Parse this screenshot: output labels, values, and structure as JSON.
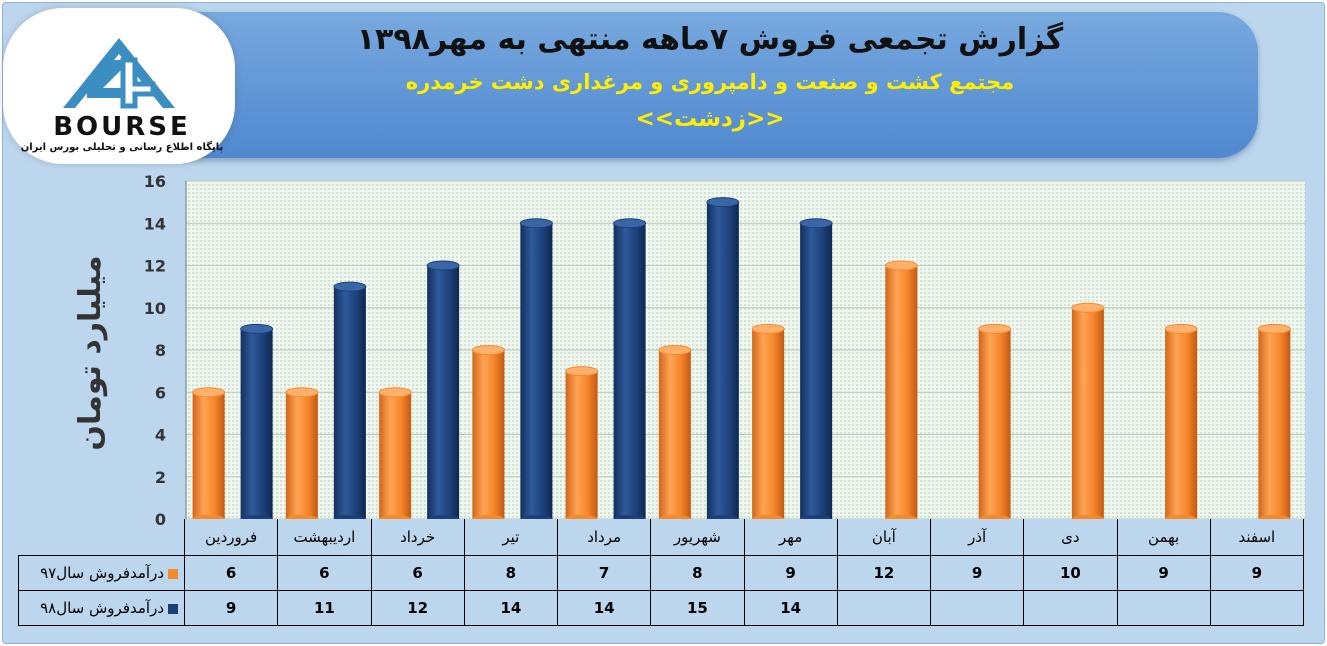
{
  "header": {
    "title": "گزارش تجمعی فروش ۷ماهه منتهی به مهر۱۳۹۸",
    "subtitle": "مجتمع کشت و صنعت و دامپروری و مرغداری دشت خرمدره",
    "symbol": "<<زدشت>>"
  },
  "logo": {
    "word": "BOURSE",
    "caption": "پایگاه اطلاع رسانی و تحلیلی بورس ایران",
    "icon": "24-mountain-logo"
  },
  "colors": {
    "series_97": "#f58a2a",
    "series_98": "#1c3f78",
    "background": "#bcd6ee",
    "banner": "#5b93d6",
    "subtitle_text": "#ffee00"
  },
  "chart_data": {
    "type": "bar",
    "ylabel": "میلیارد تومان",
    "ylim": [
      0,
      16
    ],
    "yticks": [
      0,
      2,
      4,
      6,
      8,
      10,
      12,
      14,
      16
    ],
    "grid": true,
    "categories": [
      "فروردین",
      "اردیبهشت",
      "خرداد",
      "تیر",
      "مرداد",
      "شهریور",
      "مهر",
      "آبان",
      "آذر",
      "دی",
      "بهمن",
      "اسفند"
    ],
    "series": [
      {
        "name": "درآمدفروش سال۹۷",
        "color": "#f58a2a",
        "values": [
          6,
          6,
          6,
          8,
          7,
          8,
          9,
          12,
          9,
          10,
          9,
          9
        ]
      },
      {
        "name": "درآمدفروش سال۹۸",
        "color": "#1c3f78",
        "values": [
          9,
          11,
          12,
          14,
          14,
          15,
          14,
          null,
          null,
          null,
          null,
          null
        ]
      }
    ]
  }
}
